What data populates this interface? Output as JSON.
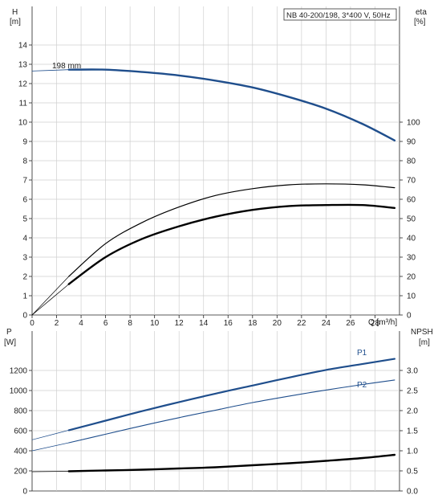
{
  "chart_data": [
    {
      "type": "line",
      "legend_box": "NB 40-200/198, 3*400 V, 50Hz",
      "left_axis": {
        "label": "H",
        "unit": "[m]",
        "ticks": [
          0,
          1,
          2,
          3,
          4,
          5,
          6,
          7,
          8,
          9,
          10,
          11,
          12,
          13,
          14
        ],
        "lim": [
          0,
          15
        ]
      },
      "right_axis": {
        "label": "eta",
        "unit": "[%]",
        "ticks": [
          0,
          10,
          20,
          30,
          40,
          50,
          60,
          70,
          80,
          90,
          100
        ],
        "lim": [
          0,
          150
        ]
      },
      "x_axis": {
        "label": "Q [m³/h]",
        "ticks": [
          0,
          2,
          4,
          6,
          8,
          10,
          12,
          14,
          16,
          18,
          20,
          22,
          24,
          26,
          28
        ],
        "lim": [
          0,
          30
        ]
      },
      "grid": true,
      "series": [
        {
          "name": "198 mm",
          "role": "H",
          "color": "#1f4e8c",
          "x": [
            0,
            3,
            6,
            9,
            12,
            15,
            18,
            21,
            24,
            27,
            29.6
          ],
          "y": [
            12.65,
            12.72,
            12.72,
            12.6,
            12.42,
            12.15,
            11.8,
            11.3,
            10.7,
            9.9,
            9.05
          ]
        },
        {
          "role": "eta_hydraulic",
          "color": "#000000",
          "x": [
            0,
            3,
            6,
            9,
            12,
            15,
            18,
            21,
            24,
            27,
            29.6
          ],
          "y": [
            0,
            20,
            37,
            48,
            56,
            62,
            65.5,
            67.5,
            68,
            67.5,
            66
          ]
        },
        {
          "role": "eta_total",
          "color": "#000000",
          "x": [
            0,
            3,
            6,
            9,
            12,
            15,
            18,
            21,
            24,
            27,
            29.6
          ],
          "y": [
            0,
            16,
            30,
            39.5,
            46,
            51,
            54.5,
            56.5,
            57,
            57,
            55.5
          ]
        }
      ]
    },
    {
      "type": "line",
      "left_axis": {
        "label": "P",
        "unit": "[W]",
        "ticks": [
          0,
          200,
          400,
          600,
          800,
          1000,
          1200
        ],
        "lim": [
          0,
          1400
        ]
      },
      "right_axis": {
        "label": "NPSH",
        "unit": "[m]",
        "ticks": [
          "0.0",
          "0.5",
          "1.0",
          "1.5",
          "2.0",
          "2.5",
          "3.0"
        ],
        "lim": [
          0,
          3.5
        ]
      },
      "grid": true,
      "series": [
        {
          "name": "P1",
          "color": "#1f4e8c",
          "x": [
            0,
            3,
            6,
            9,
            12,
            15,
            18,
            21,
            24,
            27,
            29.6
          ],
          "y": [
            510,
            605,
            700,
            795,
            885,
            970,
            1050,
            1130,
            1205,
            1265,
            1315
          ]
        },
        {
          "name": "P2",
          "color": "#1f4e8c",
          "x": [
            0,
            3,
            6,
            9,
            12,
            15,
            18,
            21,
            24,
            27,
            29.6
          ],
          "y": [
            400,
            480,
            565,
            650,
            730,
            805,
            880,
            945,
            1005,
            1060,
            1105
          ]
        },
        {
          "role": "NPSH",
          "color": "#000000",
          "x": [
            0,
            3,
            6,
            9,
            12,
            15,
            18,
            21,
            24,
            27,
            29.6
          ],
          "y": [
            0.48,
            0.49,
            0.51,
            0.53,
            0.56,
            0.59,
            0.64,
            0.69,
            0.75,
            0.82,
            0.9
          ]
        }
      ]
    }
  ]
}
